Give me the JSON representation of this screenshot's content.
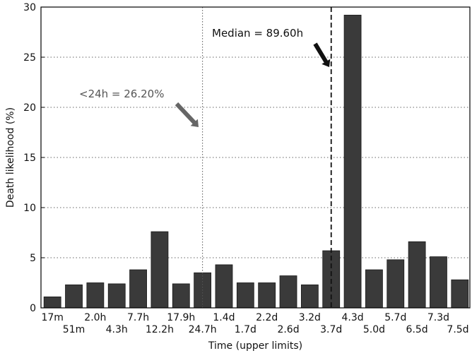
{
  "chart_data": {
    "type": "bar",
    "categories": [
      "17m",
      "51m",
      "2.0h",
      "4.3h",
      "7.7h",
      "12.2h",
      "17.9h",
      "24.7h",
      "1.4d",
      "1.7d",
      "2.2d",
      "2.6d",
      "3.2d",
      "3.7d",
      "4.3d",
      "5.0d",
      "5.7d",
      "6.5d",
      "7.3d",
      "7.5d"
    ],
    "values": [
      1.1,
      2.3,
      2.5,
      2.4,
      3.8,
      7.6,
      2.4,
      3.5,
      4.3,
      2.5,
      2.5,
      3.2,
      2.3,
      5.7,
      29.2,
      3.8,
      4.8,
      6.6,
      5.1,
      2.8
    ],
    "xlabel": "Time (upper limits)",
    "ylabel": "Death likelihood (%)",
    "ylim": [
      0,
      30
    ],
    "yticks": [
      "0",
      "5",
      "10",
      "15",
      "20",
      "25",
      "30"
    ],
    "grid": true,
    "bar_color": "#3a3a3a",
    "annotations": {
      "median": {
        "text": "Median = 89.60h",
        "position_category": 13.5,
        "line_style": "dashed"
      },
      "under24": {
        "text": "<24h = 26.20%",
        "position_category": 7.5,
        "line_style": "dotted"
      }
    }
  }
}
